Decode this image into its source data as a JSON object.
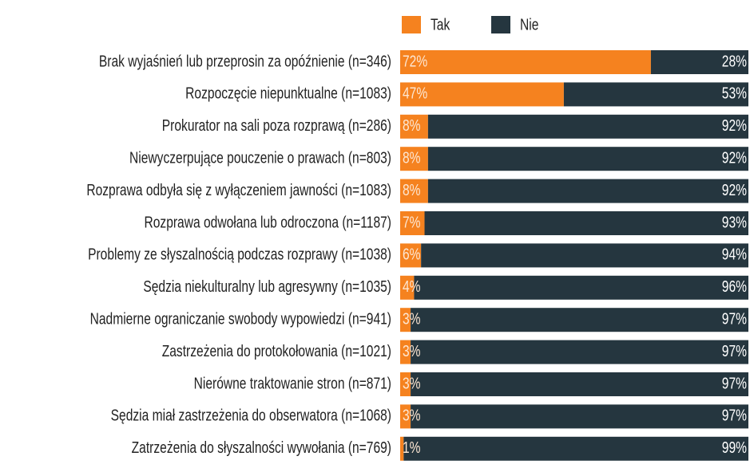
{
  "chart_data": {
    "type": "stacked-bar-horizontal",
    "categories": [
      "Brak wyjaśnień lub przeprosin za opóźnienie (n=346)",
      "Rozpoczęcie niepunktualne (n=1083)",
      "Prokurator na sali poza rozprawą (n=286)",
      "Niewyczerpujące pouczenie o prawach (n=803)",
      "Rozprawa odbyła się z wyłączeniem jawności (n=1083)",
      "Rozprawa odwołana lub odroczona (n=1187)",
      "Problemy ze słyszalnością podczas rozprawy (n=1038)",
      "Sędzia niekulturalny lub agresywny (n=1035)",
      "Nadmierne ograniczanie swobody wypowiedzi (n=941)",
      "Zastrzeżenia do protokołowania (n=1021)",
      "Nierówne traktowanie stron (n=871)",
      "Sędzia miał zastrzeżenia do obserwatora (n=1068)",
      "Zatrzeżenia do słyszalności wywołania (n=769)"
    ],
    "series": [
      {
        "name": "Tak",
        "color": "#f5821f",
        "values": [
          72,
          47,
          8,
          8,
          8,
          7,
          6,
          4,
          3,
          3,
          3,
          3,
          1
        ],
        "value_labels": [
          "72%",
          "47%",
          "8%",
          "8%",
          "8%",
          "7%",
          "6%",
          "4%",
          "3%",
          "3%",
          "3%",
          "3%",
          "1%"
        ]
      },
      {
        "name": "Nie",
        "color": "#25363f",
        "values": [
          28,
          53,
          92,
          92,
          92,
          93,
          94,
          96,
          97,
          97,
          97,
          97,
          99
        ],
        "value_labels": [
          "28%",
          "53%",
          "92%",
          "92%",
          "92%",
          "93%",
          "94%",
          "96%",
          "97%",
          "97%",
          "97%",
          "97%",
          "99%"
        ]
      }
    ],
    "xlim": [
      0,
      100
    ]
  }
}
